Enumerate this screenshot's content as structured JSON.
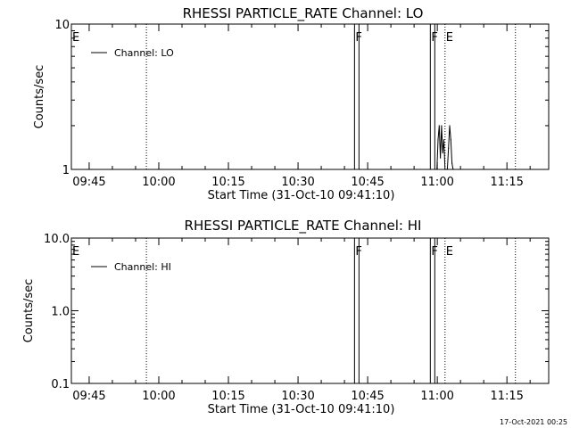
{
  "footer": {
    "timestamp": "17-Oct-2021 00:25"
  },
  "chart_data": [
    {
      "type": "line",
      "title": "RHESSI PARTICLE_RATE Channel: LO",
      "xlabel": "Start Time (31-Oct-10 09:41:10)",
      "ylabel": "Counts/sec",
      "yscale": "log",
      "ylim": [
        1,
        10
      ],
      "ytick_labels": [
        "1",
        "10"
      ],
      "ytick_values": [
        1,
        10
      ],
      "xlim": [
        "09:41:10",
        "11:24:00"
      ],
      "xtick_labels": [
        "09:45",
        "10:00",
        "10:15",
        "10:30",
        "10:45",
        "11:00",
        "11:15"
      ],
      "grid": false,
      "legend": {
        "entries": [
          "Channel: LO"
        ],
        "position": "top-left"
      },
      "flags": [
        {
          "label": "E",
          "time": "09:41:10",
          "style": "text"
        },
        {
          "label": "F",
          "time": "10:42:10",
          "style": "solid"
        },
        {
          "label": "F",
          "time": "10:58:30",
          "style": "solid"
        },
        {
          "label": "E",
          "time": "11:01:40",
          "style": "dotted"
        }
      ],
      "extra_markers": [
        {
          "time": "09:57:20",
          "style": "dotted"
        },
        {
          "time": "11:16:50",
          "style": "dotted"
        }
      ],
      "series": [
        {
          "name": "Channel: LO",
          "x": [
            "10:59:55",
            "11:00:10",
            "11:00:25",
            "11:00:40",
            "11:00:55",
            "11:01:10",
            "11:01:25",
            "11:01:40",
            "11:01:55",
            "11:02:10",
            "11:02:25",
            "11:02:40",
            "11:02:55",
            "11:03:10",
            "11:03:25"
          ],
          "values": [
            1,
            1.6,
            2.0,
            1.2,
            2.0,
            1.3,
            1.6,
            1,
            1,
            1,
            1.4,
            2.0,
            1.6,
            1.1,
            1
          ]
        }
      ]
    },
    {
      "type": "line",
      "title": "RHESSI PARTICLE_RATE Channel: HI",
      "xlabel": "Start Time (31-Oct-10 09:41:10)",
      "ylabel": "Counts/sec",
      "yscale": "log",
      "ylim": [
        0.1,
        10
      ],
      "ytick_labels": [
        "0.1",
        "1.0",
        "10.0"
      ],
      "ytick_values": [
        0.1,
        1,
        10
      ],
      "xlim": [
        "09:41:10",
        "11:24:00"
      ],
      "xtick_labels": [
        "09:45",
        "10:00",
        "10:15",
        "10:30",
        "10:45",
        "11:00",
        "11:15"
      ],
      "grid": false,
      "legend": {
        "entries": [
          "Channel: HI"
        ],
        "position": "top-left"
      },
      "flags": [
        {
          "label": "E",
          "time": "09:41:10",
          "style": "text"
        },
        {
          "label": "F",
          "time": "10:42:10",
          "style": "solid"
        },
        {
          "label": "F",
          "time": "10:58:30",
          "style": "solid"
        },
        {
          "label": "E",
          "time": "11:01:40",
          "style": "dotted"
        }
      ],
      "extra_markers": [
        {
          "time": "09:57:20",
          "style": "dotted"
        },
        {
          "time": "11:16:50",
          "style": "dotted"
        }
      ],
      "series": [
        {
          "name": "Channel: HI",
          "x": [],
          "values": []
        }
      ]
    }
  ]
}
